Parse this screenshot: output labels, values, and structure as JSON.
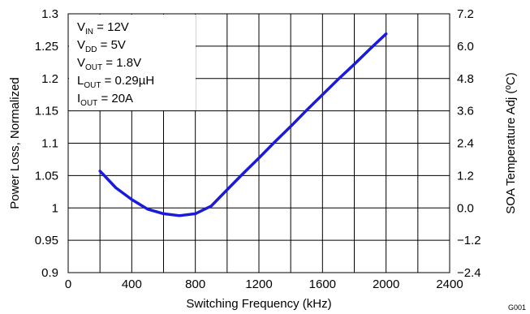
{
  "chart_data": {
    "type": "line",
    "xlabel": "Switching Frequency (kHz)",
    "ylabel": "Power Loss, Normalized",
    "y2label": "SOA Temperature Adj (ºC)",
    "xlim": [
      0,
      2400
    ],
    "ylim": [
      0.9,
      1.3
    ],
    "y2lim": [
      -2.4,
      7.2
    ],
    "x_ticks": [
      "0",
      "400",
      "800",
      "1200",
      "1600",
      "2000",
      "2400"
    ],
    "y_ticks": [
      "0.9",
      "0.95",
      "1",
      "1.05",
      "1.1",
      "1.15",
      "1.2",
      "1.25",
      "1.3"
    ],
    "y2_ticks": [
      "−2.4",
      "−1.2",
      "0.0",
      "1.2",
      "2.4",
      "3.6",
      "4.8",
      "6.0",
      "7.2"
    ],
    "grid": true,
    "line_color": "#1a1adc",
    "series": [
      {
        "x": [
          200,
          300,
          400,
          500,
          600,
          700,
          800,
          900,
          1000,
          1100,
          1200,
          1300,
          1400,
          1500,
          1600,
          1700,
          1800,
          1900,
          2000
        ],
        "values": [
          1.057,
          1.031,
          1.013,
          0.998,
          0.991,
          0.988,
          0.991,
          1.003,
          1.028,
          1.053,
          1.077,
          1.102,
          1.126,
          1.151,
          1.175,
          1.199,
          1.222,
          1.246,
          1.269
        ]
      }
    ],
    "annotations": [
      {
        "main": "V",
        "sub": "IN",
        "rest": " = 12V"
      },
      {
        "main": "V",
        "sub": "DD",
        "rest": " = 5V"
      },
      {
        "main": "V",
        "sub": "OUT",
        "rest": " = 1.8V"
      },
      {
        "main": "L",
        "sub": "OUT",
        "rest": " = 0.29µH"
      },
      {
        "main": "I",
        "sub": "OUT",
        "rest": " = 20A"
      }
    ]
  },
  "figure_id": "G001"
}
